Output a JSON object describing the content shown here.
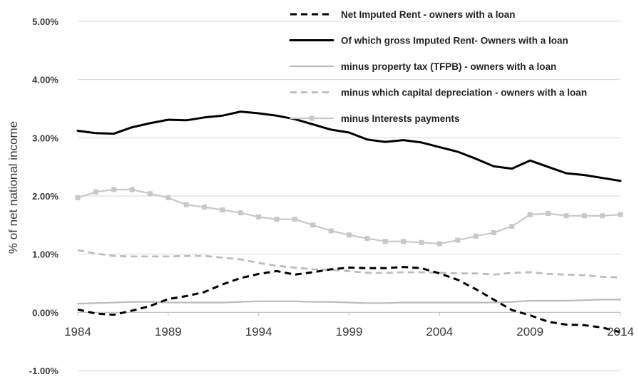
{
  "chart_data": {
    "type": "line",
    "title": "",
    "xlabel": "",
    "ylabel": "% of net national income",
    "xlim": [
      1984,
      2014
    ],
    "ylim": [
      -1.0,
      5.0
    ],
    "x_ticks": [
      "1984",
      "1989",
      "1994",
      "1999",
      "2004",
      "2009",
      "2014"
    ],
    "y_ticks": [
      "-1.00%",
      "0.00%",
      "1.00%",
      "2.00%",
      "3.00%",
      "4.00%",
      "5.00%"
    ],
    "grid": "horizontal",
    "legend_position": "top-right",
    "x": [
      1984,
      1985,
      1986,
      1987,
      1988,
      1989,
      1990,
      1991,
      1992,
      1993,
      1994,
      1995,
      1996,
      1997,
      1998,
      1999,
      2000,
      2001,
      2002,
      2003,
      2004,
      2005,
      2006,
      2007,
      2008,
      2009,
      2010,
      2011,
      2012,
      2013,
      2014
    ],
    "series": [
      {
        "name": "Net Imputed Rent - owners with a loan",
        "color": "#000000",
        "style": "dashed",
        "values": [
          0.05,
          -0.02,
          -0.04,
          0.03,
          0.11,
          0.23,
          0.28,
          0.35,
          0.48,
          0.59,
          0.66,
          0.71,
          0.65,
          0.69,
          0.74,
          0.77,
          0.76,
          0.76,
          0.78,
          0.76,
          0.67,
          0.56,
          0.4,
          0.22,
          0.04,
          -0.05,
          -0.16,
          -0.21,
          -0.22,
          -0.26,
          -0.34
        ]
      },
      {
        "name": "Of which gross Imputed Rent- Owners with a loan",
        "color": "#000000",
        "style": "solid",
        "values": [
          3.12,
          3.08,
          3.07,
          3.18,
          3.25,
          3.31,
          3.3,
          3.35,
          3.38,
          3.45,
          3.42,
          3.38,
          3.32,
          3.23,
          3.14,
          3.09,
          2.97,
          2.93,
          2.96,
          2.92,
          2.84,
          2.76,
          2.64,
          2.51,
          2.47,
          2.61,
          2.5,
          2.39,
          2.36,
          2.31,
          2.26
        ]
      },
      {
        "name": "minus property tax (TFPB)  - owners with a loan",
        "color": "#bcbcbc",
        "style": "solid",
        "values": [
          0.15,
          0.16,
          0.17,
          0.18,
          0.18,
          0.17,
          0.17,
          0.17,
          0.17,
          0.18,
          0.19,
          0.19,
          0.19,
          0.18,
          0.18,
          0.17,
          0.16,
          0.16,
          0.17,
          0.17,
          0.17,
          0.17,
          0.17,
          0.17,
          0.18,
          0.2,
          0.2,
          0.2,
          0.21,
          0.22,
          0.22
        ]
      },
      {
        "name": "minus which capital depreciation -  owners with a loan",
        "color": "#bcbcbc",
        "style": "dashed",
        "values": [
          1.07,
          1.01,
          0.97,
          0.96,
          0.96,
          0.96,
          0.97,
          0.97,
          0.94,
          0.91,
          0.85,
          0.8,
          0.77,
          0.74,
          0.73,
          0.71,
          0.68,
          0.68,
          0.69,
          0.69,
          0.68,
          0.67,
          0.67,
          0.65,
          0.68,
          0.69,
          0.66,
          0.65,
          0.64,
          0.61,
          0.6
        ]
      },
      {
        "name": "minus Interests payments",
        "color": "#c8c8c8",
        "style": "solid-square-markers",
        "values": [
          1.97,
          2.07,
          2.11,
          2.11,
          2.04,
          1.97,
          1.85,
          1.81,
          1.76,
          1.71,
          1.64,
          1.6,
          1.6,
          1.5,
          1.4,
          1.33,
          1.27,
          1.22,
          1.22,
          1.2,
          1.18,
          1.24,
          1.31,
          1.37,
          1.48,
          1.68,
          1.7,
          1.66,
          1.66,
          1.66,
          1.68
        ]
      }
    ]
  }
}
